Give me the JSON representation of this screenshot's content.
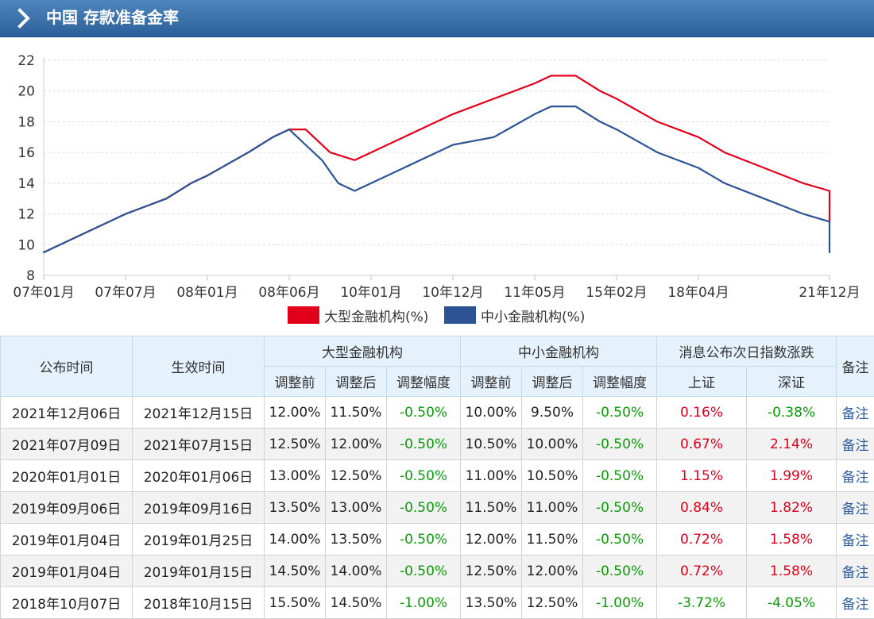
{
  "header": {
    "title": "中国 存款准备金率",
    "icon": "chevron-right-icon"
  },
  "chart_data": {
    "type": "line",
    "ylim": [
      8,
      22
    ],
    "yticks": [
      8,
      10,
      12,
      14,
      16,
      18,
      20,
      22
    ],
    "xticks": [
      "07年01月",
      "07年07月",
      "08年01月",
      "08年06月",
      "10年01月",
      "10年12月",
      "11年05月",
      "15年02月",
      "18年04月",
      "21年12月"
    ],
    "grid": true,
    "legend_position": "bottom",
    "colors": {
      "large": "#e3001b",
      "small": "#2c5494"
    },
    "series": [
      {
        "name": "大型金融机构(%)",
        "points": [
          [
            0,
            9.5
          ],
          [
            1,
            12
          ],
          [
            1.5,
            13
          ],
          [
            1.8,
            14
          ],
          [
            2,
            14.5
          ],
          [
            2.5,
            16
          ],
          [
            2.8,
            17
          ],
          [
            3,
            17.5
          ],
          [
            3.2,
            17.5
          ],
          [
            3.5,
            16
          ],
          [
            3.8,
            15.5
          ],
          [
            4,
            16
          ],
          [
            5,
            18.5
          ],
          [
            6,
            20.5
          ],
          [
            6.2,
            21
          ],
          [
            6.5,
            21
          ],
          [
            6.8,
            20
          ],
          [
            7,
            19.5
          ],
          [
            7.5,
            18
          ],
          [
            8,
            17
          ],
          [
            8.2,
            16
          ],
          [
            8.5,
            15
          ],
          [
            8.8,
            14
          ],
          [
            9,
            13.5
          ],
          [
            10,
            11.5
          ]
        ]
      },
      {
        "name": "中小金融机构(%)",
        "points": [
          [
            0,
            9.5
          ],
          [
            1,
            12
          ],
          [
            1.5,
            13
          ],
          [
            1.8,
            14
          ],
          [
            2,
            14.5
          ],
          [
            2.5,
            16
          ],
          [
            2.8,
            17
          ],
          [
            3,
            17.5
          ],
          [
            3.2,
            16.5
          ],
          [
            3.4,
            15.5
          ],
          [
            3.6,
            14
          ],
          [
            3.8,
            13.5
          ],
          [
            4,
            14
          ],
          [
            5,
            16.5
          ],
          [
            5.5,
            17
          ],
          [
            6,
            18.5
          ],
          [
            6.2,
            19
          ],
          [
            6.5,
            19
          ],
          [
            6.8,
            18
          ],
          [
            7,
            17.5
          ],
          [
            7.5,
            16
          ],
          [
            8,
            15
          ],
          [
            8.2,
            14
          ],
          [
            8.5,
            13
          ],
          [
            8.8,
            12
          ],
          [
            9,
            11.5
          ],
          [
            10,
            9.5
          ]
        ]
      }
    ]
  },
  "table": {
    "headers": {
      "announce": "公布时间",
      "effective": "生效时间",
      "large": "大型金融机构",
      "small": "中小金融机构",
      "market": "消息公布次日指数涨跌",
      "note": "备注",
      "before": "调整前",
      "after": "调整后",
      "range": "调整幅度",
      "sh": "上证",
      "sz": "深证"
    },
    "rows": [
      {
        "announce": "2021年12月06日",
        "effective": "2021年12月15日",
        "l_before": "12.00%",
        "l_after": "11.50%",
        "l_range": "-0.50%",
        "s_before": "10.00%",
        "s_after": "9.50%",
        "s_range": "-0.50%",
        "sh": "0.16%",
        "sz": "-0.38%",
        "note": "备注"
      },
      {
        "announce": "2021年07月09日",
        "effective": "2021年07月15日",
        "l_before": "12.50%",
        "l_after": "12.00%",
        "l_range": "-0.50%",
        "s_before": "10.50%",
        "s_after": "10.00%",
        "s_range": "-0.50%",
        "sh": "0.67%",
        "sz": "2.14%",
        "note": "备注"
      },
      {
        "announce": "2020年01月01日",
        "effective": "2020年01月06日",
        "l_before": "13.00%",
        "l_after": "12.50%",
        "l_range": "-0.50%",
        "s_before": "11.00%",
        "s_after": "10.50%",
        "s_range": "-0.50%",
        "sh": "1.15%",
        "sz": "1.99%",
        "note": "备注"
      },
      {
        "announce": "2019年09月06日",
        "effective": "2019年09月16日",
        "l_before": "13.50%",
        "l_after": "13.00%",
        "l_range": "-0.50%",
        "s_before": "11.50%",
        "s_after": "11.00%",
        "s_range": "-0.50%",
        "sh": "0.84%",
        "sz": "1.82%",
        "note": "备注"
      },
      {
        "announce": "2019年01月04日",
        "effective": "2019年01月25日",
        "l_before": "14.00%",
        "l_after": "13.50%",
        "l_range": "-0.50%",
        "s_before": "12.00%",
        "s_after": "11.50%",
        "s_range": "-0.50%",
        "sh": "0.72%",
        "sz": "1.58%",
        "note": "备注"
      },
      {
        "announce": "2019年01月04日",
        "effective": "2019年01月15日",
        "l_before": "14.50%",
        "l_after": "14.00%",
        "l_range": "-0.50%",
        "s_before": "12.50%",
        "s_after": "12.00%",
        "s_range": "-0.50%",
        "sh": "0.72%",
        "sz": "1.58%",
        "note": "备注"
      },
      {
        "announce": "2018年10月07日",
        "effective": "2018年10月15日",
        "l_before": "15.50%",
        "l_after": "14.50%",
        "l_range": "-1.00%",
        "s_before": "13.50%",
        "s_after": "12.50%",
        "s_range": "-1.00%",
        "sh": "-3.72%",
        "sz": "-4.05%",
        "note": "备注"
      }
    ]
  }
}
